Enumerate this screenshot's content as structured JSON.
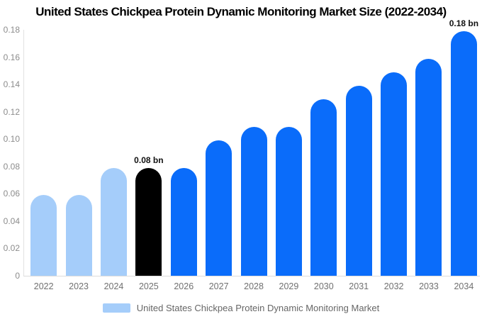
{
  "title": "United States Chickpea Protein Dynamic Monitoring Market Size (2022-2034)",
  "legend": {
    "label": "United States Chickpea Protein Dynamic Monitoring Market",
    "swatch_color": "#a5cdfa"
  },
  "colors": {
    "historical_bar": "#a5cdfa",
    "highlight_bar": "#000000",
    "forecast_bar": "#0a6cfa"
  },
  "chart_data": {
    "type": "bar",
    "title": "United States Chickpea Protein Dynamic Monitoring Market Size (2022-2034)",
    "xlabel": "",
    "ylabel": "",
    "unit": "bn",
    "categories": [
      "2022",
      "2023",
      "2024",
      "2025",
      "2026",
      "2027",
      "2028",
      "2029",
      "2030",
      "2031",
      "2032",
      "2033",
      "2034"
    ],
    "values": [
      0.059,
      0.059,
      0.079,
      0.079,
      0.079,
      0.099,
      0.109,
      0.109,
      0.129,
      0.139,
      0.149,
      0.159,
      0.179
    ],
    "bar_colors": [
      "#a5cdfa",
      "#a5cdfa",
      "#a5cdfa",
      "#000000",
      "#0a6cfa",
      "#0a6cfa",
      "#0a6cfa",
      "#0a6cfa",
      "#0a6cfa",
      "#0a6cfa",
      "#0a6cfa",
      "#0a6cfa",
      "#0a6cfa"
    ],
    "data_labels": [
      "",
      "",
      "",
      "0.08 bn",
      "",
      "",
      "",
      "",
      "",
      "",
      "",
      "",
      "0.18 bn"
    ],
    "ylim": [
      0,
      0.18
    ],
    "yticks": [
      "0.18",
      "0.16",
      "0.14",
      "0.12",
      "0.10",
      "0.08",
      "0.06",
      "0.04",
      "0.02",
      "0"
    ],
    "grid": false,
    "legend_position": "bottom",
    "legend_entries": [
      "United States Chickpea Protein Dynamic Monitoring Market"
    ]
  }
}
